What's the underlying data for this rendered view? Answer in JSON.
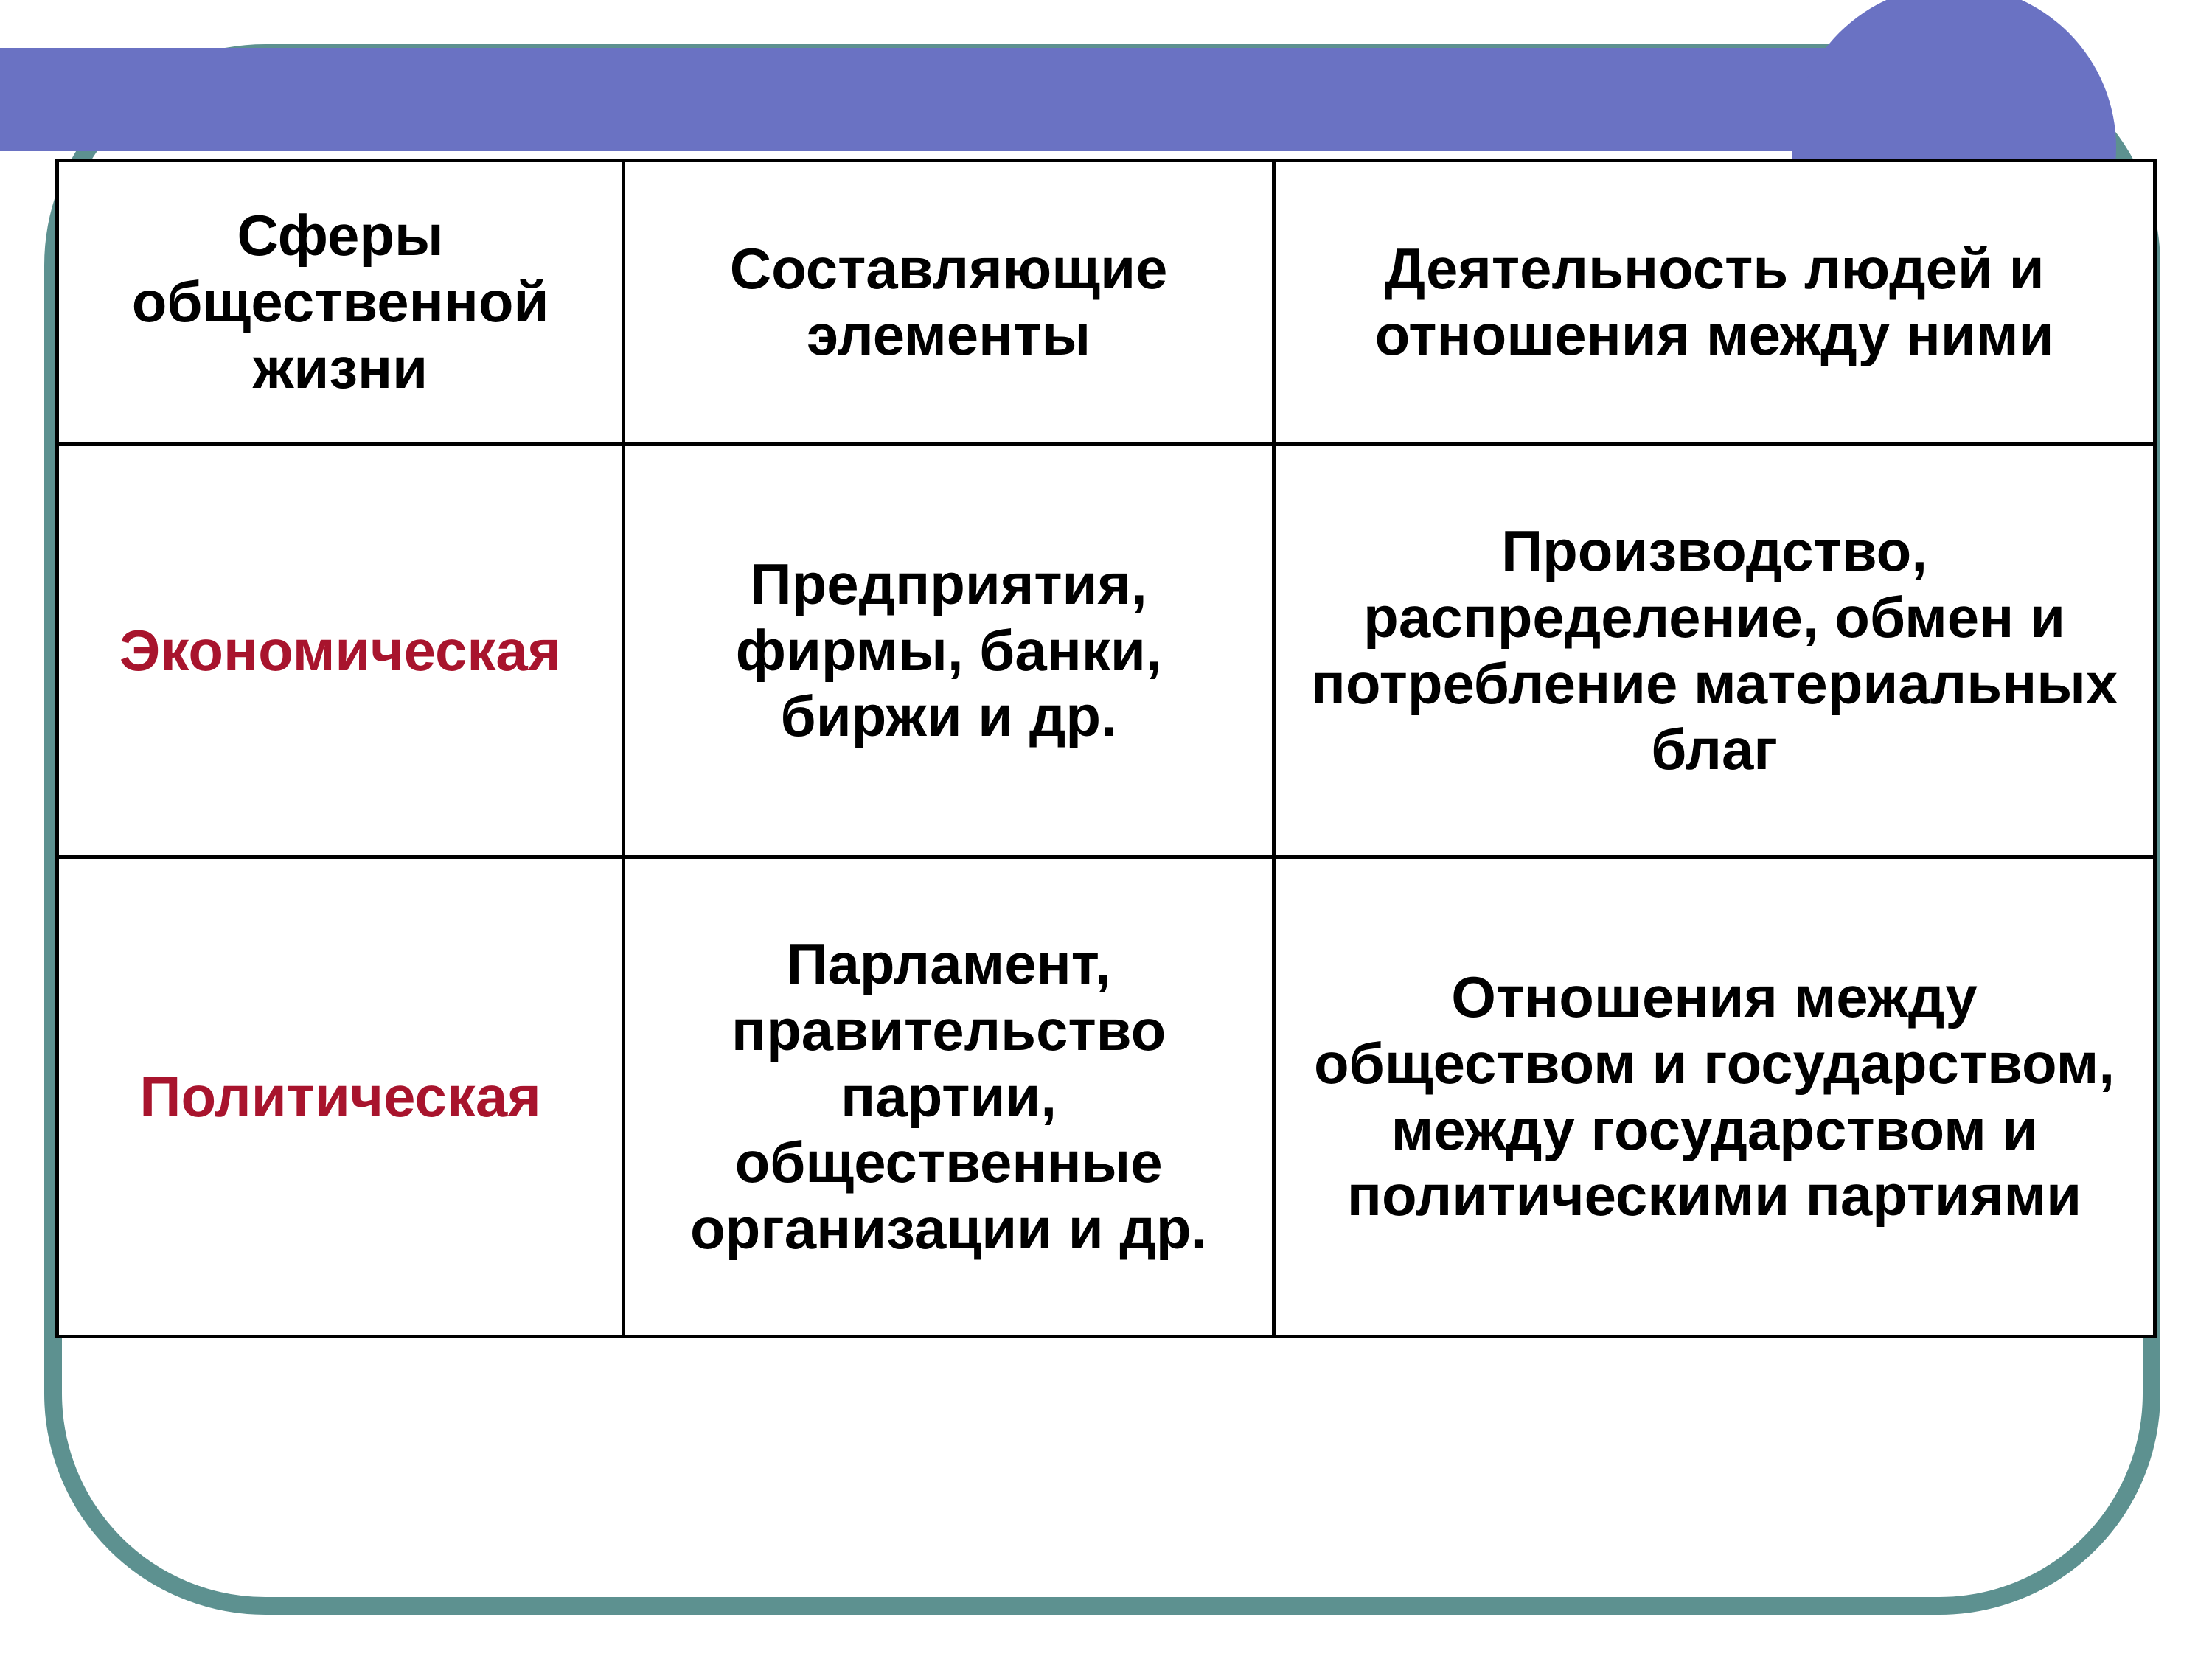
{
  "slide": {
    "background_color": "#ffffff",
    "accent_color": "#6a72c3",
    "curve_border_color": "#5d9190",
    "table_border_color": "#000000",
    "header_text_color": "#000000",
    "row_label_color": "#a8142d",
    "cell_text_color": "#000000",
    "font_family": "Arial",
    "header_fontsize": 78,
    "cell_fontsize": 78,
    "font_weight": "bold",
    "table": {
      "columns": [
        "Сферы общественной жизни",
        "Составляющие элементы",
        "Деятельность людей и отношения между ними"
      ],
      "column_widths_pct": [
        27,
        31,
        42
      ],
      "rows": [
        {
          "label": "Экономическая",
          "elements": "Предприятия, фирмы, банки, биржи и др.",
          "activity": "Производство, распределение, обмен и потребление материальных благ"
        },
        {
          "label": "Политическая",
          "elements": "Парламент, правительство партии, общественные организации и др.",
          "activity": "Отношения между обществом и государством, между государством и политическими партиями"
        }
      ]
    }
  }
}
